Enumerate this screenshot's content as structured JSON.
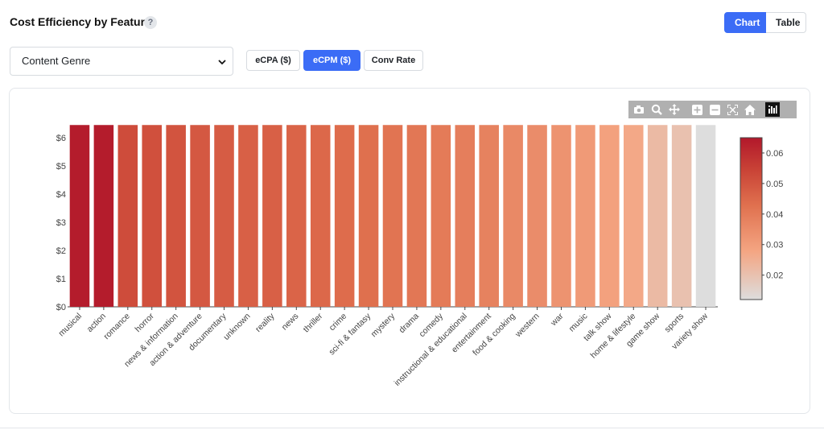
{
  "header": {
    "title": "Cost Efficiency by Feature",
    "help": "?"
  },
  "view_toggle": {
    "chart_label": "Chart",
    "table_label": "Table",
    "active": "Chart"
  },
  "feature_select": {
    "value": "Content Genre"
  },
  "metric_tabs": [
    {
      "label": "eCPA ($)",
      "active": false
    },
    {
      "label": "eCPM ($)",
      "active": true
    },
    {
      "label": "Conv Rate",
      "active": false
    }
  ],
  "modebar_icons": [
    "camera-icon",
    "zoom-icon",
    "pan-icon",
    "zoom-in-icon",
    "zoom-out-icon",
    "autoscale-icon",
    "home-icon",
    "plotly-logo-icon"
  ],
  "colors": {
    "accent": "#3b6cf6",
    "scale_high": "#b2182b",
    "scale_mid": "#ef8a62",
    "scale_low": "#dddddd"
  },
  "chart_data": {
    "type": "bar",
    "title": "",
    "xlabel": "",
    "ylabel": "",
    "ylim": [
      0,
      6.6
    ],
    "y_ticks": [
      "$0",
      "$1",
      "$2",
      "$3",
      "$4",
      "$5",
      "$6"
    ],
    "categories": [
      "musical",
      "action",
      "romance",
      "horror",
      "news & information",
      "action & adventure",
      "documentary",
      "unknown",
      "reality",
      "news",
      "thriller",
      "crime",
      "sci-fi & fantasy",
      "mystery",
      "drama",
      "comedy",
      "instructional & educational",
      "entertainment",
      "food & cooking",
      "western",
      "war",
      "music",
      "talk show",
      "home & lifestyle",
      "game show",
      "sports",
      "variety show"
    ],
    "values": [
      6.45,
      6.45,
      6.45,
      6.45,
      6.45,
      6.45,
      6.45,
      6.45,
      6.45,
      6.45,
      6.45,
      6.45,
      6.45,
      6.45,
      6.45,
      6.45,
      6.45,
      6.45,
      6.45,
      6.45,
      6.45,
      6.45,
      6.45,
      6.45,
      6.45,
      6.45,
      6.45
    ],
    "color_values": [
      0.064,
      0.064,
      0.052,
      0.051,
      0.05,
      0.049,
      0.048,
      0.047,
      0.047,
      0.046,
      0.045,
      0.044,
      0.043,
      0.042,
      0.041,
      0.04,
      0.039,
      0.038,
      0.036,
      0.035,
      0.033,
      0.031,
      0.029,
      0.027,
      0.022,
      0.02,
      0.012
    ],
    "colorbar": {
      "range": [
        0.012,
        0.065
      ],
      "ticks": [
        "0.06",
        "0.05",
        "0.04",
        "0.03",
        "0.02"
      ],
      "tick_values": [
        0.06,
        0.05,
        0.04,
        0.03,
        0.02
      ]
    },
    "grid": false,
    "legend": "none"
  }
}
